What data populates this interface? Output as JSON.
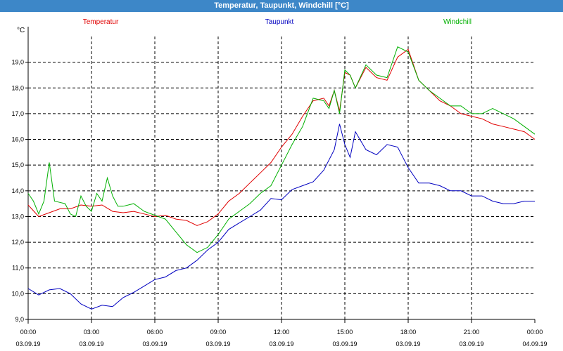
{
  "window": {
    "title": "Temperatur, Taupunkt, Windchill [°C]"
  },
  "legend": [
    {
      "name": "Temperatur",
      "color": "#e00000"
    },
    {
      "name": "Taupunkt",
      "color": "#0000c0"
    },
    {
      "name": "Windchill",
      "color": "#00b000"
    }
  ],
  "chart_data": {
    "type": "line",
    "title": "Temperatur, Taupunkt, Windchill [°C]",
    "ylabel": "°C",
    "xlabel": "",
    "ylim": [
      9.0,
      20.0
    ],
    "xlim": [
      0,
      24
    ],
    "grid": true,
    "legend_placement": "top",
    "yticks": [
      {
        "value": 9.0,
        "label": "9,0"
      },
      {
        "value": 10.0,
        "label": "10,0"
      },
      {
        "value": 11.0,
        "label": "11,0"
      },
      {
        "value": 12.0,
        "label": "12,0"
      },
      {
        "value": 13.0,
        "label": "13,0"
      },
      {
        "value": 14.0,
        "label": "14,0"
      },
      {
        "value": 15.0,
        "label": "15,0"
      },
      {
        "value": 16.0,
        "label": "16,0"
      },
      {
        "value": 17.0,
        "label": "17,0"
      },
      {
        "value": 18.0,
        "label": "18,0"
      },
      {
        "value": 19.0,
        "label": "19,0"
      }
    ],
    "xticks": [
      {
        "value": 0,
        "time": "00:00",
        "date": "03.09.19"
      },
      {
        "value": 3,
        "time": "03:00",
        "date": "03.09.19"
      },
      {
        "value": 6,
        "time": "06:00",
        "date": "03.09.19"
      },
      {
        "value": 9,
        "time": "09:00",
        "date": "03.09.19"
      },
      {
        "value": 12,
        "time": "12:00",
        "date": "03.09.19"
      },
      {
        "value": 15,
        "time": "15:00",
        "date": "03.09.19"
      },
      {
        "value": 18,
        "time": "18:00",
        "date": "03.09.19"
      },
      {
        "value": 21,
        "time": "21:00",
        "date": "03.09.19"
      },
      {
        "value": 24,
        "time": "00:00",
        "date": "04.09.19"
      }
    ],
    "series": [
      {
        "name": "Temperatur",
        "color": "#e00000",
        "x": [
          0,
          0.5,
          1,
          1.5,
          2,
          2.5,
          3,
          3.5,
          4,
          4.5,
          5,
          5.5,
          6,
          6.5,
          7,
          7.5,
          8,
          8.5,
          9,
          9.5,
          10,
          10.5,
          11,
          11.5,
          12,
          12.5,
          13,
          13.5,
          14,
          14.25,
          14.5,
          14.75,
          15,
          15.25,
          15.5,
          16,
          16.5,
          17,
          17.5,
          18,
          18.5,
          19,
          19.5,
          20,
          20.5,
          21,
          21.5,
          22,
          22.5,
          23,
          23.5,
          24
        ],
        "y": [
          13.45,
          13.0,
          13.15,
          13.3,
          13.3,
          13.45,
          13.4,
          13.45,
          13.2,
          13.15,
          13.2,
          13.1,
          13.0,
          13.05,
          12.9,
          12.85,
          12.65,
          12.8,
          13.1,
          13.6,
          13.9,
          14.3,
          14.7,
          15.1,
          15.7,
          16.2,
          16.9,
          17.5,
          17.6,
          17.3,
          17.9,
          17.1,
          18.6,
          18.5,
          18.0,
          18.8,
          18.4,
          18.3,
          19.2,
          19.5,
          18.3,
          17.9,
          17.5,
          17.3,
          17.0,
          16.9,
          16.8,
          16.6,
          16.5,
          16.4,
          16.3,
          16.0
        ]
      },
      {
        "name": "Taupunkt",
        "color": "#0000c0",
        "x": [
          0,
          0.5,
          1,
          1.5,
          2,
          2.5,
          3,
          3.5,
          4,
          4.5,
          5,
          5.5,
          6,
          6.5,
          7,
          7.5,
          8,
          8.5,
          9,
          9.5,
          10,
          10.5,
          11,
          11.5,
          12,
          12.5,
          13,
          13.5,
          14,
          14.5,
          14.75,
          15,
          15.25,
          15.5,
          16,
          16.5,
          17,
          17.5,
          18,
          18.5,
          19,
          19.5,
          20,
          20.5,
          21,
          21.5,
          22,
          22.5,
          23,
          23.5,
          24
        ],
        "y": [
          10.2,
          9.95,
          10.15,
          10.2,
          10.0,
          9.6,
          9.4,
          9.55,
          9.5,
          9.85,
          10.05,
          10.3,
          10.55,
          10.65,
          10.9,
          11.0,
          11.3,
          11.7,
          12.0,
          12.5,
          12.75,
          13.0,
          13.25,
          13.7,
          13.65,
          14.05,
          14.2,
          14.35,
          14.8,
          15.6,
          16.6,
          15.8,
          15.3,
          16.3,
          15.6,
          15.4,
          15.8,
          15.7,
          14.9,
          14.3,
          14.3,
          14.2,
          14.0,
          14.0,
          13.8,
          13.8,
          13.6,
          13.5,
          13.5,
          13.6,
          13.6
        ]
      },
      {
        "name": "Windchill",
        "color": "#00b000",
        "x": [
          0,
          0.25,
          0.5,
          0.75,
          1,
          1.25,
          1.5,
          1.75,
          2,
          2.25,
          2.5,
          2.75,
          3,
          3.25,
          3.5,
          3.75,
          4,
          4.25,
          4.5,
          5,
          5.5,
          6,
          6.5,
          7,
          7.5,
          8,
          8.5,
          9,
          9.5,
          10,
          10.5,
          11,
          11.5,
          12,
          12.5,
          13,
          13.5,
          14,
          14.25,
          14.5,
          14.75,
          15,
          15.25,
          15.5,
          16,
          16.5,
          17,
          17.5,
          18,
          18.5,
          19,
          19.5,
          20,
          20.5,
          21,
          21.5,
          22,
          22.5,
          23,
          23.5,
          24
        ],
        "y": [
          13.9,
          13.6,
          13.1,
          13.6,
          15.1,
          13.6,
          13.55,
          13.5,
          13.1,
          13.0,
          13.8,
          13.4,
          13.2,
          13.9,
          13.6,
          14.5,
          13.8,
          13.4,
          13.4,
          13.5,
          13.2,
          13.05,
          12.9,
          12.4,
          11.9,
          11.6,
          11.8,
          12.3,
          12.9,
          13.2,
          13.5,
          13.9,
          14.2,
          15.0,
          15.8,
          16.5,
          17.6,
          17.5,
          17.2,
          17.9,
          17.0,
          18.7,
          18.5,
          18.0,
          18.9,
          18.5,
          18.4,
          19.6,
          19.4,
          18.3,
          17.9,
          17.6,
          17.3,
          17.3,
          17.0,
          17.0,
          17.2,
          17.0,
          16.8,
          16.5,
          16.2
        ]
      }
    ]
  }
}
